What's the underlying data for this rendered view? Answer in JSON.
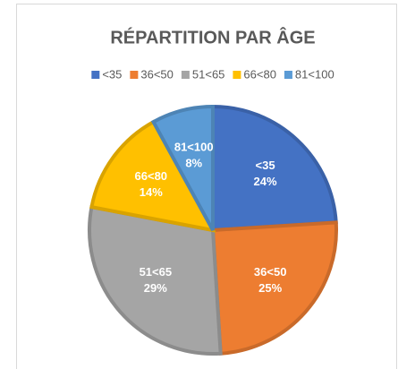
{
  "chart_data": {
    "type": "pie",
    "title": "RÉPARTITION PAR ÂGE",
    "categories": [
      "<35",
      "36<50",
      "51<65",
      "66<80",
      "81<100"
    ],
    "values": [
      24,
      25,
      29,
      14,
      8
    ],
    "value_labels": [
      "24%",
      "25%",
      "29%",
      "14%",
      "8%"
    ],
    "colors": [
      "#4472c4",
      "#ed7d31",
      "#a5a5a5",
      "#ffc000",
      "#5b9bd5"
    ],
    "legend": "top"
  }
}
